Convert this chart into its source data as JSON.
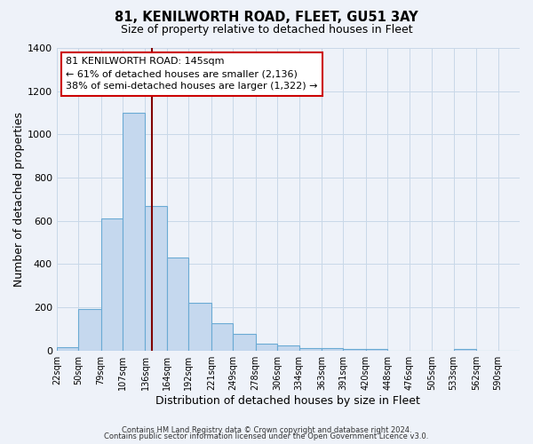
{
  "title": "81, KENILWORTH ROAD, FLEET, GU51 3AY",
  "subtitle": "Size of property relative to detached houses in Fleet",
  "xlabel": "Distribution of detached houses by size in Fleet",
  "ylabel": "Number of detached properties",
  "bin_labels": [
    "22sqm",
    "50sqm",
    "79sqm",
    "107sqm",
    "136sqm",
    "164sqm",
    "192sqm",
    "221sqm",
    "249sqm",
    "278sqm",
    "306sqm",
    "334sqm",
    "363sqm",
    "391sqm",
    "420sqm",
    "448sqm",
    "476sqm",
    "505sqm",
    "533sqm",
    "562sqm",
    "590sqm"
  ],
  "bin_edges": [
    22,
    50,
    79,
    107,
    136,
    164,
    192,
    221,
    249,
    278,
    306,
    334,
    363,
    391,
    420,
    448,
    476,
    505,
    533,
    562,
    590
  ],
  "bar_heights": [
    15,
    190,
    610,
    1100,
    670,
    430,
    220,
    125,
    75,
    30,
    25,
    10,
    10,
    5,
    5,
    0,
    0,
    0,
    5,
    0,
    0
  ],
  "bar_color": "#c5d8ee",
  "bar_edgecolor": "#6aaad4",
  "grid_color": "#c8d8e8",
  "vline_x": 145,
  "vline_color": "#800000",
  "annotation_title": "81 KENILWORTH ROAD: 145sqm",
  "annotation_line1": "← 61% of detached houses are smaller (2,136)",
  "annotation_line2": "38% of semi-detached houses are larger (1,322) →",
  "annotation_box_edgecolor": "#cc0000",
  "ylim": [
    0,
    1400
  ],
  "yticks": [
    0,
    200,
    400,
    600,
    800,
    1000,
    1200,
    1400
  ],
  "footer1": "Contains HM Land Registry data © Crown copyright and database right 2024.",
  "footer2": "Contains public sector information licensed under the Open Government Licence v3.0.",
  "bg_color": "#eef2f9"
}
